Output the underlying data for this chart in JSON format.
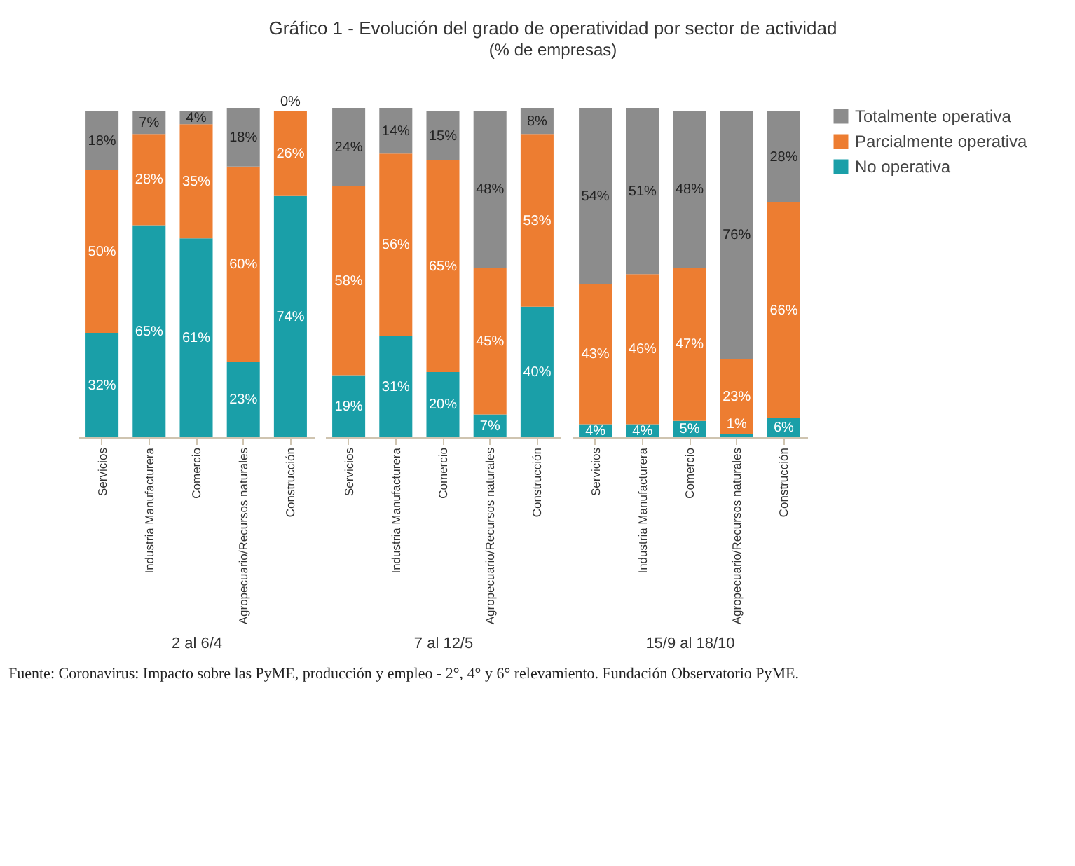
{
  "chart_data": [
    {
      "type": "bar",
      "stacked": true,
      "xlabel": "2 al 6/4",
      "tick_labels": "x",
      "legend": "right",
      "categories": [
        "Servicios",
        "Industria Manufacturera",
        "Comercio",
        "Agropecuario/Recursos naturales",
        "Construcción"
      ],
      "series": [
        {
          "name": "No operativa",
          "color": "#1a9fa8",
          "values": [
            32,
            65,
            61,
            23,
            74
          ],
          "value_labels": [
            "32%",
            "65%",
            "61%",
            "23%",
            "74%"
          ]
        },
        {
          "name": "Parcialmente operativa",
          "color": "#ed7d31",
          "values": [
            50,
            28,
            35,
            60,
            26
          ],
          "value_labels": [
            "50%",
            "28%",
            "35%",
            "60%",
            "26%"
          ]
        },
        {
          "name": "Totalmente operativa",
          "color": "#8c8c8c",
          "values": [
            18,
            7,
            4,
            18,
            0
          ],
          "value_labels": [
            "18%",
            "7%",
            "4%",
            "18%",
            "0%"
          ]
        }
      ]
    },
    {
      "type": "bar",
      "stacked": true,
      "title": "Gráfico 1 - Evolución del grado de operatividad por sector de actividad",
      "subtitle": "(% de empresas)",
      "xlabel": "7 al 12/5",
      "tick_labels": "x",
      "legend": "right",
      "annotations": [
        "Fuente: Coronavirus: Impacto sobre las PyME, producción y empleo - 2°, 4° y 6° relevamiento. Fundación Observatorio PyME."
      ],
      "categories": [
        "Servicios",
        "Industria Manufacturera",
        "Comercio",
        "Agropecuario/Recursos naturales",
        "Construcción"
      ],
      "series": [
        {
          "name": "No operativa",
          "color": "#1a9fa8",
          "values": [
            19,
            31,
            20,
            7,
            40
          ],
          "value_labels": [
            "19%",
            "31%",
            "20%",
            "7%",
            "40%"
          ]
        },
        {
          "name": "Parcialmente operativa",
          "color": "#ed7d31",
          "values": [
            58,
            56,
            65,
            45,
            53
          ],
          "value_labels": [
            "58%",
            "56%",
            "65%",
            "45%",
            "53%"
          ]
        },
        {
          "name": "Totalmente operativa",
          "color": "#8c8c8c",
          "values": [
            24,
            14,
            15,
            48,
            8
          ],
          "value_labels": [
            "24%",
            "14%",
            "15%",
            "48%",
            "8%"
          ]
        }
      ]
    },
    {
      "type": "bar",
      "stacked": true,
      "xlabel": "15/9 al 18/10",
      "tick_labels": "x",
      "legend": "right",
      "categories": [
        "Servicios",
        "Industria Manufacturera",
        "Comercio",
        "Agropecuario/Recursos naturales",
        "Construcción"
      ],
      "series": [
        {
          "name": "No operativa",
          "color": "#1a9fa8",
          "values": [
            4,
            4,
            5,
            1,
            6
          ],
          "value_labels": [
            "4%",
            "4%",
            "5%",
            "1%",
            "6%"
          ]
        },
        {
          "name": "Parcialmente operativa",
          "color": "#ed7d31",
          "values": [
            43,
            46,
            47,
            23,
            66
          ],
          "value_labels": [
            "43%",
            "46%",
            "47%",
            "23%",
            "66%"
          ]
        },
        {
          "name": "Totalmente operativa",
          "color": "#8c8c8c",
          "values": [
            54,
            51,
            48,
            76,
            28
          ],
          "value_labels": [
            "54%",
            "51%",
            "48%",
            "76%",
            "28%"
          ]
        }
      ]
    }
  ]
}
